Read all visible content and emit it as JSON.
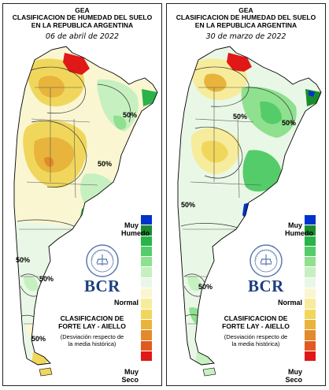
{
  "panels": [
    {
      "id": "left",
      "header_org": "GEA",
      "title_line1": "CLASIFICACION DE HUMEDAD DEL SUELO",
      "title_line2": "EN LA REPUBLICA ARGENTINA",
      "date": "06 de abril de 2022",
      "contour_labels": [
        "50%",
        "50%",
        "50%",
        "50%",
        "50%"
      ]
    },
    {
      "id": "right",
      "header_org": "GEA",
      "title_line1": "CLASIFICACION DE HUMEDAD DEL SUELO",
      "title_line2": "EN LA REPUBLICA ARGENTINA",
      "date": "30 de marzo de 2022",
      "contour_labels": [
        "50%",
        "50%",
        "50%",
        "50%"
      ]
    }
  ],
  "legend": {
    "top_label_1": "Muy",
    "top_label_2": "Humedo",
    "middle_label": "Normal",
    "bottom_label_1": "Muy",
    "bottom_label_2": "Seco",
    "colors_top_to_bottom": [
      "#0033cc",
      "#1a8c2e",
      "#29b34a",
      "#55cc6a",
      "#8fe08f",
      "#c6f0c0",
      "#e9f8e6",
      "#fbf6d2",
      "#f7ec9c",
      "#f0d75c",
      "#e8b43c",
      "#e38a2c",
      "#e05a20",
      "#e01818"
    ]
  },
  "branding": {
    "logo_name": "BCR",
    "logo_ring_text": "BOLSA DE COMERCIO DE ROSARIO"
  },
  "method": {
    "line1": "CLASIFICACION DE",
    "line2": "FORTE LAY - AIELLO",
    "note_line1": "(Desviación respecto de",
    "note_line2": "la media histórica)"
  },
  "colors": {
    "very_dry": "#e01818",
    "dry": "#e8b43c",
    "slightly_dry": "#f7ec9c",
    "normal": "#e9f8e6",
    "humid": "#55cc6a",
    "very_humid": "#0033cc"
  }
}
